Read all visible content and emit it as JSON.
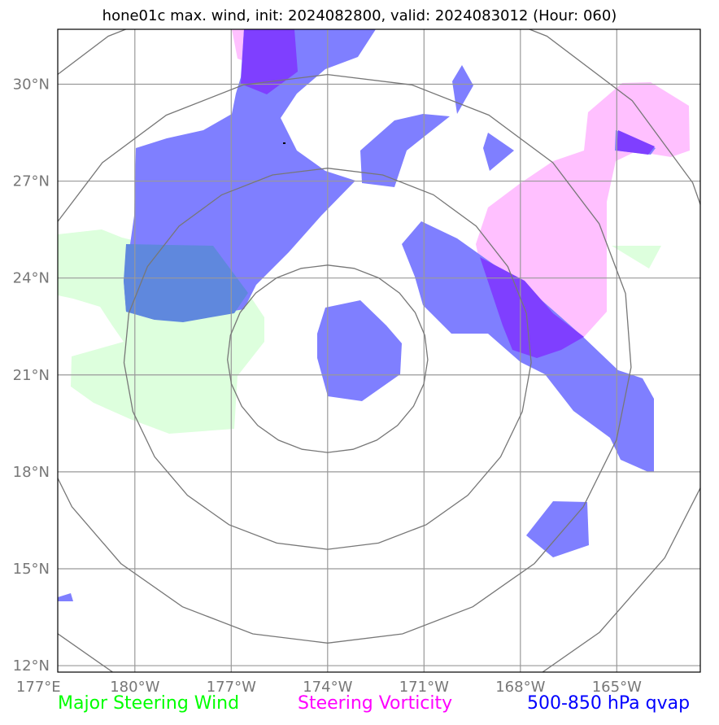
{
  "header": {
    "title": "hone01c max. wind, init: 2024082800, valid: 2024083012 (Hour: 060)"
  },
  "map": {
    "extent": {
      "lon_min": -182.4,
      "lon_max": -162.4,
      "lat_min": 11.8,
      "lat_max": 31.7
    },
    "lat_ticks": [
      {
        "value": 12,
        "label": "12°N"
      },
      {
        "value": 15,
        "label": "15°N"
      },
      {
        "value": 18,
        "label": "18°N"
      },
      {
        "value": 21,
        "label": "21°N"
      },
      {
        "value": 24,
        "label": "24°N"
      },
      {
        "value": 27,
        "label": "27°N"
      },
      {
        "value": 30,
        "label": "30°N"
      }
    ],
    "lon_ticks": [
      {
        "value": -183,
        "label": "177°E"
      },
      {
        "value": -180,
        "label": "180°W"
      },
      {
        "value": -177,
        "label": "177°W"
      },
      {
        "value": -174,
        "label": "174°W"
      },
      {
        "value": -171,
        "label": "171°W"
      },
      {
        "value": -168,
        "label": "168°W"
      },
      {
        "value": -165,
        "label": "165°W"
      }
    ],
    "range_rings": {
      "center_lon": -174.0,
      "center_lat": 21.5,
      "radii_deg": [
        2.9,
        5.9,
        8.8,
        11.7
      ]
    },
    "layers": {
      "green_color": "#ddffdd",
      "pink_color": "#ffc0ff",
      "blue_color": "#7f7fff",
      "overlap_blue_pink_color": "#7f3fff",
      "overlap_blue_green_color": "#5f88dd"
    }
  },
  "legend": {
    "green_label": "Major Steering Wind",
    "green_color": "#00ff00",
    "magenta_label": "Steering Vorticity",
    "magenta_color": "#ff00ff",
    "blue_label": "500-850 hPa qvap",
    "blue_color": "#0000ff"
  }
}
